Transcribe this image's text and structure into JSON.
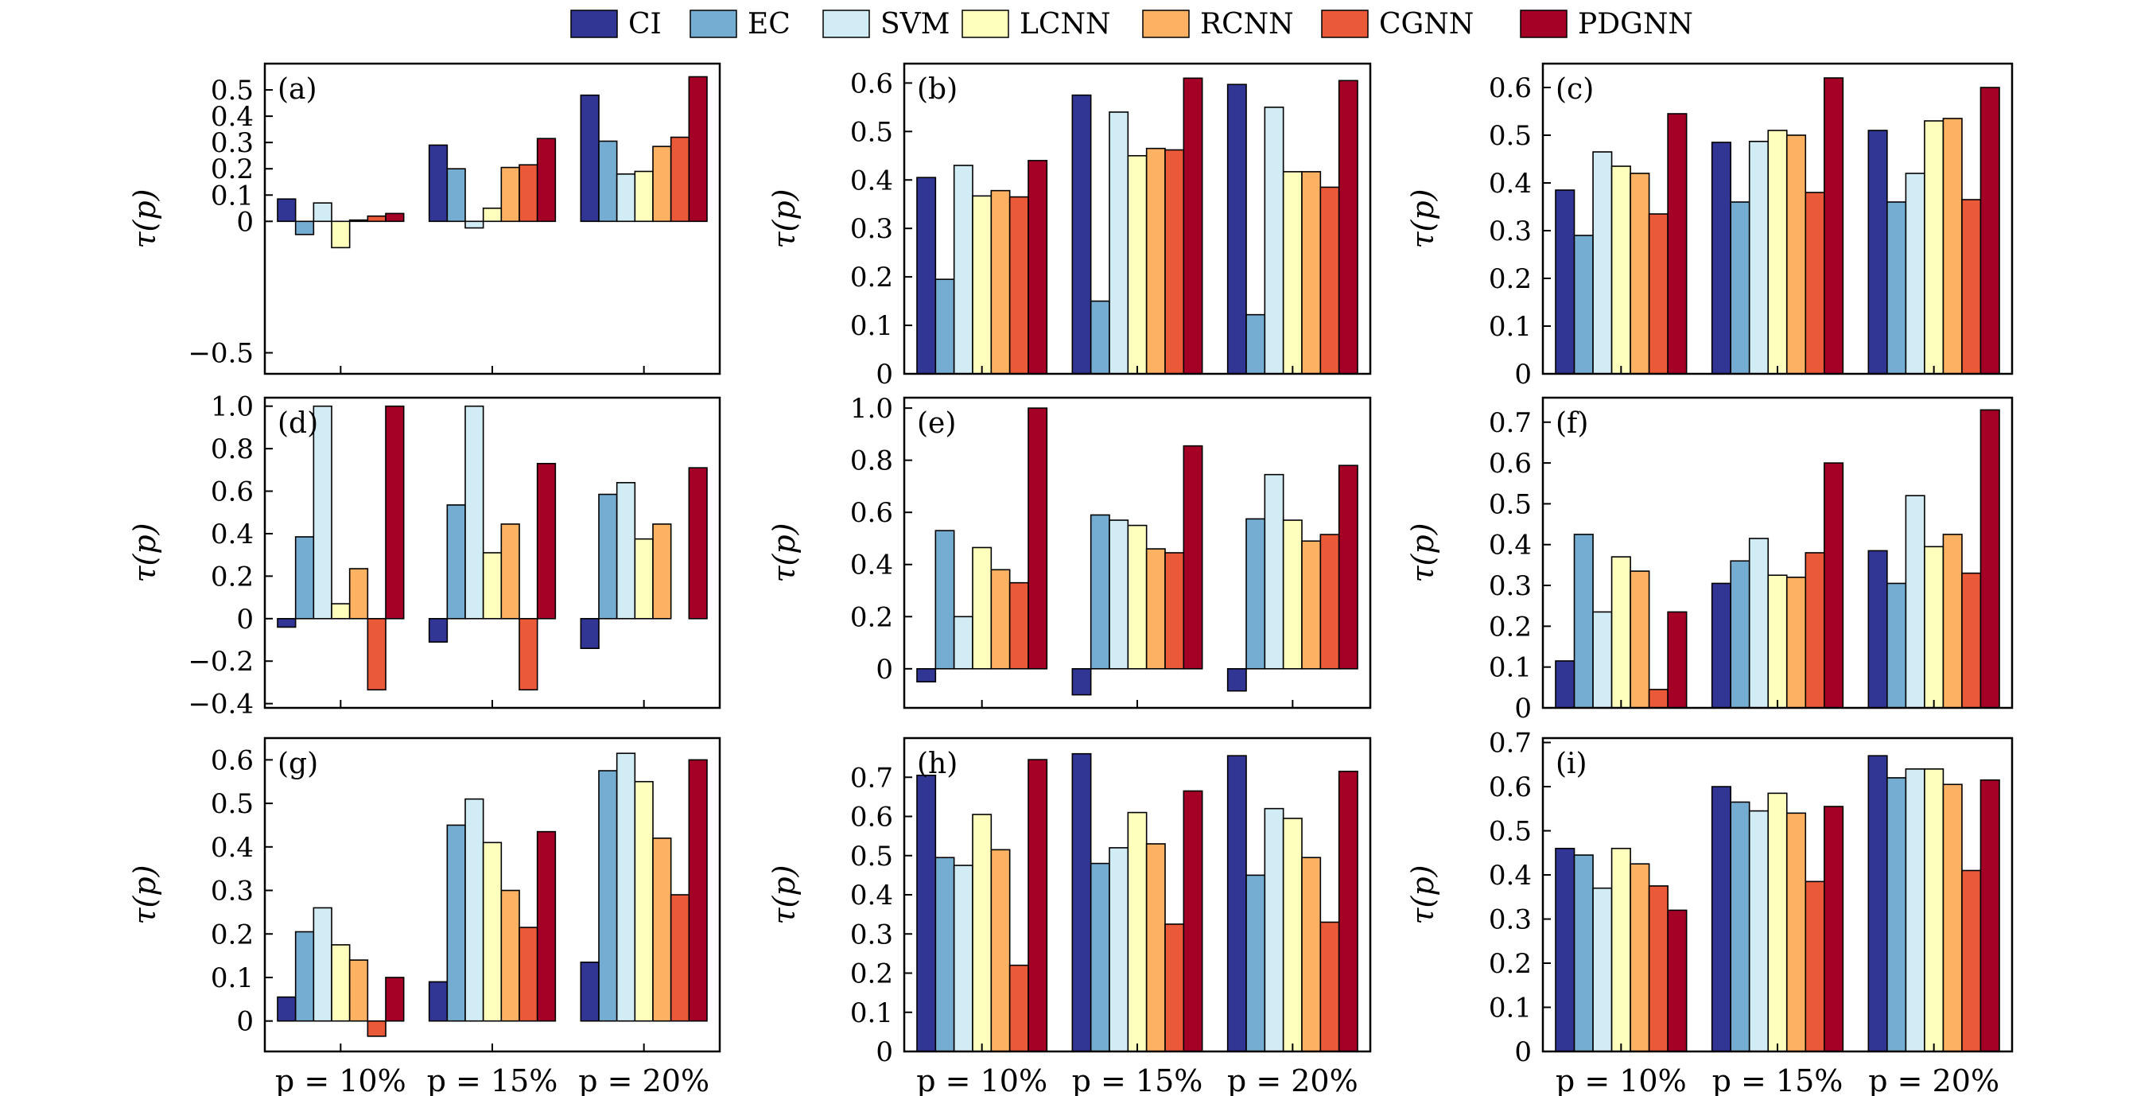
{
  "legend": [
    "CI",
    "EC",
    "SVM",
    "LCNN",
    "RCNN",
    "CGNN",
    "PDGNN"
  ],
  "colors": [
    "#313695",
    "#74add1",
    "#d1ecf4",
    "#fefebd",
    "#fdb163",
    "#ea5a38",
    "#a50026"
  ],
  "chart_data": [
    {
      "type": "bar",
      "panel": "(a)",
      "ylabel": "τ(p)",
      "categories": [
        "p = 10%",
        "p = 15%",
        "p = 20%"
      ],
      "ylim": [
        -0.58,
        0.6
      ],
      "yticks": [
        -0.5,
        0,
        0.1,
        0.2,
        0.3,
        0.4,
        0.5
      ],
      "ytick_labels": [
        "−0.5",
        "0",
        "0.1",
        "0.2",
        "0.3",
        "0.4",
        "0.5"
      ],
      "series": [
        {
          "name": "CI",
          "values": [
            0.085,
            0.29,
            0.48
          ]
        },
        {
          "name": "EC",
          "values": [
            -0.05,
            0.2,
            0.305
          ]
        },
        {
          "name": "SVM",
          "values": [
            0.07,
            -0.025,
            0.18
          ]
        },
        {
          "name": "LCNN",
          "values": [
            -0.1,
            0.05,
            0.19
          ]
        },
        {
          "name": "RCNN",
          "values": [
            0.005,
            0.205,
            0.285
          ]
        },
        {
          "name": "CGNN",
          "values": [
            0.02,
            0.215,
            0.32
          ]
        },
        {
          "name": "PDGNN",
          "values": [
            0.03,
            0.315,
            0.55
          ]
        }
      ]
    },
    {
      "type": "bar",
      "panel": "(b)",
      "ylabel": "τ(p)",
      "categories": [
        "p = 10%",
        "p = 15%",
        "p = 20%"
      ],
      "ylim": [
        0,
        0.64
      ],
      "yticks": [
        0,
        0.1,
        0.2,
        0.3,
        0.4,
        0.5,
        0.6
      ],
      "ytick_labels": [
        "0",
        "0.1",
        "0.2",
        "0.3",
        "0.4",
        "0.5",
        "0.6"
      ],
      "series": [
        {
          "name": "CI",
          "values": [
            0.405,
            0.575,
            0.597
          ]
        },
        {
          "name": "EC",
          "values": [
            0.195,
            0.15,
            0.122
          ]
        },
        {
          "name": "SVM",
          "values": [
            0.43,
            0.54,
            0.55
          ]
        },
        {
          "name": "LCNN",
          "values": [
            0.367,
            0.45,
            0.417
          ]
        },
        {
          "name": "RCNN",
          "values": [
            0.378,
            0.465,
            0.417
          ]
        },
        {
          "name": "CGNN",
          "values": [
            0.365,
            0.462,
            0.385
          ]
        },
        {
          "name": "PDGNN",
          "values": [
            0.44,
            0.61,
            0.605
          ]
        }
      ]
    },
    {
      "type": "bar",
      "panel": "(c)",
      "ylabel": "τ(p)",
      "categories": [
        "p = 10%",
        "p = 15%",
        "p = 20%"
      ],
      "ylim": [
        0,
        0.65
      ],
      "yticks": [
        0,
        0.1,
        0.2,
        0.3,
        0.4,
        0.5,
        0.6
      ],
      "ytick_labels": [
        "0",
        "0.1",
        "0.2",
        "0.3",
        "0.4",
        "0.5",
        "0.6"
      ],
      "series": [
        {
          "name": "CI",
          "values": [
            0.385,
            0.485,
            0.51
          ]
        },
        {
          "name": "EC",
          "values": [
            0.29,
            0.36,
            0.36
          ]
        },
        {
          "name": "SVM",
          "values": [
            0.465,
            0.487,
            0.42
          ]
        },
        {
          "name": "LCNN",
          "values": [
            0.435,
            0.51,
            0.53
          ]
        },
        {
          "name": "RCNN",
          "values": [
            0.42,
            0.5,
            0.535
          ]
        },
        {
          "name": "CGNN",
          "values": [
            0.335,
            0.38,
            0.365
          ]
        },
        {
          "name": "PDGNN",
          "values": [
            0.545,
            0.62,
            0.6
          ]
        }
      ]
    },
    {
      "type": "bar",
      "panel": "(d)",
      "ylabel": "τ(p)",
      "categories": [
        "p = 10%",
        "p = 15%",
        "p = 20%"
      ],
      "ylim": [
        -0.42,
        1.04
      ],
      "yticks": [
        -0.4,
        -0.2,
        0,
        0.2,
        0.4,
        0.6,
        0.8,
        1.0
      ],
      "ytick_labels": [
        "−0.4",
        "−0.2",
        "0",
        "0.2",
        "0.4",
        "0.6",
        "0.8",
        "1.0"
      ],
      "series": [
        {
          "name": "CI",
          "values": [
            -0.04,
            -0.11,
            -0.14
          ]
        },
        {
          "name": "EC",
          "values": [
            0.385,
            0.535,
            0.585
          ]
        },
        {
          "name": "SVM",
          "values": [
            1.0,
            1.0,
            0.64
          ]
        },
        {
          "name": "LCNN",
          "values": [
            0.07,
            0.31,
            0.375
          ]
        },
        {
          "name": "RCNN",
          "values": [
            0.235,
            0.445,
            0.445
          ]
        },
        {
          "name": "CGNN",
          "values": [
            -0.335,
            -0.335,
            0
          ]
        },
        {
          "name": "PDGNN",
          "values": [
            1.0,
            0.73,
            0.71
          ]
        }
      ]
    },
    {
      "type": "bar",
      "panel": "(e)",
      "ylabel": "τ(p)",
      "categories": [
        "p = 10%",
        "p = 15%",
        "p = 20%"
      ],
      "ylim": [
        -0.15,
        1.04
      ],
      "yticks": [
        0,
        0.2,
        0.4,
        0.6,
        0.8,
        1.0
      ],
      "ytick_labels": [
        "0",
        "0.2",
        "0.4",
        "0.6",
        "0.8",
        "1.0"
      ],
      "series": [
        {
          "name": "CI",
          "values": [
            -0.05,
            -0.1,
            -0.085
          ]
        },
        {
          "name": "EC",
          "values": [
            0.53,
            0.59,
            0.575
          ]
        },
        {
          "name": "SVM",
          "values": [
            0.2,
            0.57,
            0.745
          ]
        },
        {
          "name": "LCNN",
          "values": [
            0.465,
            0.55,
            0.57
          ]
        },
        {
          "name": "RCNN",
          "values": [
            0.38,
            0.46,
            0.49
          ]
        },
        {
          "name": "CGNN",
          "values": [
            0.33,
            0.445,
            0.515
          ]
        },
        {
          "name": "PDGNN",
          "values": [
            1.0,
            0.855,
            0.78
          ]
        }
      ]
    },
    {
      "type": "bar",
      "panel": "(f)",
      "ylabel": "τ(p)",
      "categories": [
        "p = 10%",
        "p = 15%",
        "p = 20%"
      ],
      "ylim": [
        0,
        0.76
      ],
      "yticks": [
        0,
        0.1,
        0.2,
        0.3,
        0.4,
        0.5,
        0.6,
        0.7
      ],
      "ytick_labels": [
        "0",
        "0.1",
        "0.2",
        "0.3",
        "0.4",
        "0.5",
        "0.6",
        "0.7"
      ],
      "series": [
        {
          "name": "CI",
          "values": [
            0.115,
            0.305,
            0.385
          ]
        },
        {
          "name": "EC",
          "values": [
            0.425,
            0.36,
            0.305
          ]
        },
        {
          "name": "SVM",
          "values": [
            0.235,
            0.415,
            0.52
          ]
        },
        {
          "name": "LCNN",
          "values": [
            0.37,
            0.325,
            0.395
          ]
        },
        {
          "name": "RCNN",
          "values": [
            0.335,
            0.32,
            0.425
          ]
        },
        {
          "name": "CGNN",
          "values": [
            0.045,
            0.38,
            0.33
          ]
        },
        {
          "name": "PDGNN",
          "values": [
            0.235,
            0.6,
            0.73
          ]
        }
      ]
    },
    {
      "type": "bar",
      "panel": "(g)",
      "ylabel": "τ(p)",
      "categories": [
        "p = 10%",
        "p = 15%",
        "p = 20%"
      ],
      "ylim": [
        -0.07,
        0.65
      ],
      "yticks": [
        0,
        0.1,
        0.2,
        0.3,
        0.4,
        0.5,
        0.6
      ],
      "ytick_labels": [
        "0",
        "0.1",
        "0.2",
        "0.3",
        "0.4",
        "0.5",
        "0.6"
      ],
      "series": [
        {
          "name": "CI",
          "values": [
            0.055,
            0.09,
            0.135
          ]
        },
        {
          "name": "EC",
          "values": [
            0.205,
            0.45,
            0.575
          ]
        },
        {
          "name": "SVM",
          "values": [
            0.26,
            0.51,
            0.615
          ]
        },
        {
          "name": "LCNN",
          "values": [
            0.175,
            0.41,
            0.55
          ]
        },
        {
          "name": "RCNN",
          "values": [
            0.14,
            0.3,
            0.42
          ]
        },
        {
          "name": "CGNN",
          "values": [
            -0.035,
            0.215,
            0.29
          ]
        },
        {
          "name": "PDGNN",
          "values": [
            0.1,
            0.435,
            0.6
          ]
        }
      ]
    },
    {
      "type": "bar",
      "panel": "(h)",
      "ylabel": "τ(p)",
      "categories": [
        "p = 10%",
        "p = 15%",
        "p = 20%"
      ],
      "ylim": [
        0,
        0.8
      ],
      "yticks": [
        0,
        0.1,
        0.2,
        0.3,
        0.4,
        0.5,
        0.6,
        0.7
      ],
      "ytick_labels": [
        "0",
        "0.1",
        "0.2",
        "0.3",
        "0.4",
        "0.5",
        "0.6",
        "0.7"
      ],
      "series": [
        {
          "name": "CI",
          "values": [
            0.705,
            0.76,
            0.755
          ]
        },
        {
          "name": "EC",
          "values": [
            0.495,
            0.48,
            0.45
          ]
        },
        {
          "name": "SVM",
          "values": [
            0.475,
            0.52,
            0.62
          ]
        },
        {
          "name": "LCNN",
          "values": [
            0.605,
            0.61,
            0.595
          ]
        },
        {
          "name": "RCNN",
          "values": [
            0.515,
            0.53,
            0.495
          ]
        },
        {
          "name": "CGNN",
          "values": [
            0.22,
            0.325,
            0.33
          ]
        },
        {
          "name": "PDGNN",
          "values": [
            0.745,
            0.665,
            0.715
          ]
        }
      ]
    },
    {
      "type": "bar",
      "panel": "(i)",
      "ylabel": "τ(p)",
      "categories": [
        "p = 10%",
        "p = 15%",
        "p = 20%"
      ],
      "ylim": [
        0,
        0.71
      ],
      "yticks": [
        0,
        0.1,
        0.2,
        0.3,
        0.4,
        0.5,
        0.6,
        0.7
      ],
      "ytick_labels": [
        "0",
        "0.1",
        "0.2",
        "0.3",
        "0.4",
        "0.5",
        "0.6",
        "0.7"
      ],
      "series": [
        {
          "name": "CI",
          "values": [
            0.46,
            0.6,
            0.67
          ]
        },
        {
          "name": "EC",
          "values": [
            0.445,
            0.565,
            0.62
          ]
        },
        {
          "name": "SVM",
          "values": [
            0.37,
            0.545,
            0.64
          ]
        },
        {
          "name": "LCNN",
          "values": [
            0.46,
            0.585,
            0.64
          ]
        },
        {
          "name": "RCNN",
          "values": [
            0.425,
            0.54,
            0.605
          ]
        },
        {
          "name": "CGNN",
          "values": [
            0.375,
            0.385,
            0.41
          ]
        },
        {
          "name": "PDGNN",
          "values": [
            0.32,
            0.555,
            0.615
          ]
        }
      ]
    }
  ]
}
